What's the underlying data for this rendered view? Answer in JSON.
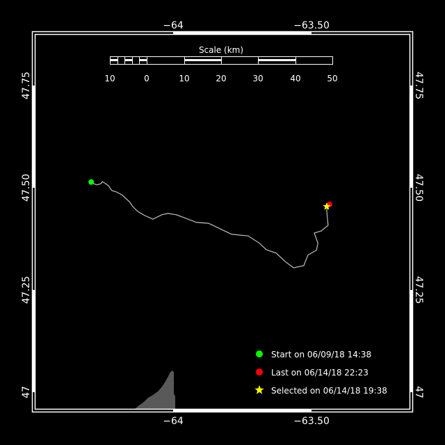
{
  "map": {
    "lon_ticks": [
      "−64",
      "−63.50"
    ],
    "lon_tick_values": [
      -64,
      -63.5
    ],
    "lat_ticks": [
      "47.75",
      "47.50",
      "47.25",
      "47"
    ],
    "lat_tick_values": [
      47.75,
      47.5,
      47.25,
      47
    ],
    "background_color": "#000000",
    "land_color": "#595959",
    "track_color": "#c0c0c0"
  },
  "scale_bar": {
    "title": "Scale (km)",
    "labels": [
      "10",
      "0",
      "10",
      "20",
      "30",
      "40",
      "50"
    ]
  },
  "track": [
    [
      -64.296,
      47.514
    ],
    [
      -64.289,
      47.51
    ],
    [
      -64.274,
      47.507
    ],
    [
      -64.261,
      47.51
    ],
    [
      -64.256,
      47.515
    ],
    [
      -64.244,
      47.51
    ],
    [
      -64.234,
      47.505
    ],
    [
      -64.221,
      47.493
    ],
    [
      -64.206,
      47.49
    ],
    [
      -64.186,
      47.483
    ],
    [
      -64.158,
      47.466
    ],
    [
      -64.146,
      47.454
    ],
    [
      -64.128,
      47.442
    ],
    [
      -64.103,
      47.432
    ],
    [
      -64.073,
      47.423
    ],
    [
      -64.04,
      47.434
    ],
    [
      -64.018,
      47.437
    ],
    [
      -63.99,
      47.434
    ],
    [
      -63.965,
      47.428
    ],
    [
      -63.915,
      47.415
    ],
    [
      -63.872,
      47.413
    ],
    [
      -63.829,
      47.399
    ],
    [
      -63.789,
      47.386
    ],
    [
      -63.729,
      47.382
    ],
    [
      -63.688,
      47.364
    ],
    [
      -63.663,
      47.348
    ],
    [
      -63.628,
      47.34
    ],
    [
      -63.595,
      47.319
    ],
    [
      -63.565,
      47.304
    ],
    [
      -63.528,
      47.309
    ],
    [
      -63.513,
      47.335
    ],
    [
      -63.482,
      47.347
    ],
    [
      -63.477,
      47.364
    ],
    [
      -63.49,
      47.389
    ],
    [
      -63.465,
      47.394
    ],
    [
      -63.44,
      47.408
    ],
    [
      -63.445,
      47.444
    ],
    [
      -63.442,
      47.454
    ]
  ],
  "markers": {
    "start": {
      "lon": -64.296,
      "lat": 47.514,
      "color": "#00ff00"
    },
    "last": {
      "lon": -63.435,
      "lat": 47.459,
      "color": "#ff0000"
    },
    "selected": {
      "lon": -63.445,
      "lat": 47.454,
      "color": "#ffff00"
    }
  },
  "legend": {
    "start_label": "Start on 06/09/18 14:38",
    "last_label": "Last on 06/14/18 22:23",
    "selected_label": "Selected on 06/14/18 19:38"
  }
}
